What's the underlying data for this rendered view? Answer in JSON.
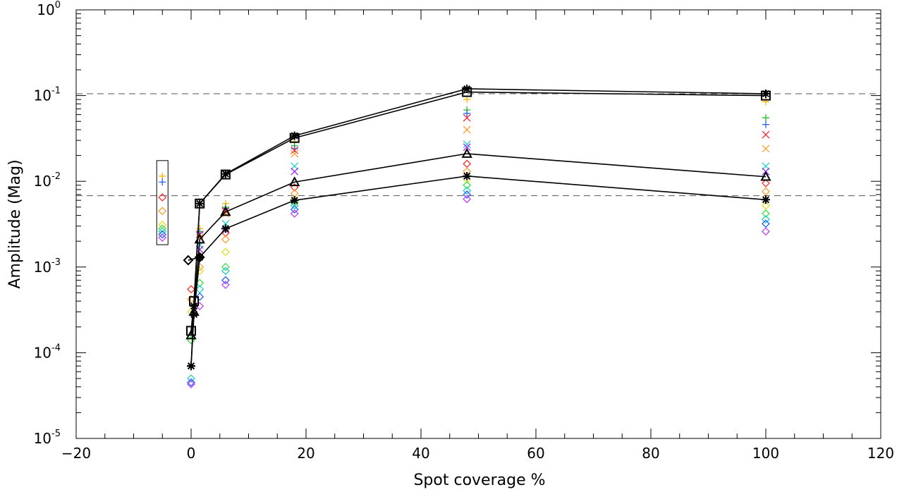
{
  "chart_data": {
    "type": "scatter",
    "title": "",
    "xlabel": "Spot coverage %",
    "ylabel": "Amplitude (Mag)",
    "xlim": [
      -20,
      120
    ],
    "ylim": [
      1e-05,
      1
    ],
    "yscale": "log",
    "x_ticks": [
      -20,
      0,
      20,
      40,
      60,
      80,
      100,
      120
    ],
    "x_tick_labels": [
      "−20",
      "0",
      "20",
      "40",
      "60",
      "80",
      "100",
      "120"
    ],
    "y_ticks": [
      {
        "base": "10",
        "exp": "0",
        "value": 1
      },
      {
        "base": "10",
        "exp": "-1",
        "value": 0.1
      },
      {
        "base": "10",
        "exp": "-2",
        "value": 0.01
      },
      {
        "base": "10",
        "exp": "-3",
        "value": 0.001
      },
      {
        "base": "10",
        "exp": "-4",
        "value": 0.0001
      },
      {
        "base": "10",
        "exp": "-5",
        "value": 1e-05
      }
    ],
    "grid": false,
    "reference_lines": [
      {
        "y": 0.105,
        "style": "dashed"
      },
      {
        "y": 0.0068,
        "style": "dashed"
      }
    ],
    "series": [
      {
        "marker": "star",
        "color": "#000000",
        "points": [
          [
            0,
            7e-05
          ],
          [
            0.5,
            0.00035
          ],
          [
            1.5,
            0.0055
          ],
          [
            6,
            0.0122
          ],
          [
            18,
            0.034
          ],
          [
            48,
            0.12
          ],
          [
            100,
            0.105
          ]
        ]
      },
      {
        "marker": "square",
        "color": "#000000",
        "points": [
          [
            0,
            0.00018
          ],
          [
            0.5,
            0.0004
          ],
          [
            1.5,
            0.0055
          ],
          [
            6,
            0.012
          ],
          [
            18,
            0.032
          ],
          [
            48,
            0.11
          ],
          [
            100,
            0.1
          ]
        ]
      },
      {
        "marker": "triangle",
        "color": "#000000",
        "points": [
          [
            0,
            0.00016
          ],
          [
            0.5,
            0.0003
          ],
          [
            1.5,
            0.0021
          ],
          [
            6,
            0.0044
          ],
          [
            18,
            0.0098
          ],
          [
            48,
            0.021
          ],
          [
            100,
            0.0113
          ]
        ]
      },
      {
        "marker": "asterisk",
        "color": "#000000",
        "points": [
          [
            0,
            7e-05
          ],
          [
            0.5,
            0.00028
          ],
          [
            1.5,
            0.0013
          ],
          [
            6,
            0.0028
          ],
          [
            18,
            0.006
          ],
          [
            48,
            0.0115
          ],
          [
            100,
            0.0061
          ]
        ]
      },
      {
        "marker": "diamond",
        "color": "#000000",
        "points": [
          [
            -0.5,
            0.0012
          ],
          [
            1.5,
            0.0013
          ]
        ]
      }
    ],
    "colored_markers": [
      {
        "color": "#ffb000",
        "marker": "plus",
        "x": [
          48,
          100,
          18,
          6,
          1.5
        ],
        "y": [
          0.09,
          0.085,
          0.029,
          0.0055,
          0.0028
        ]
      },
      {
        "color": "#20c020",
        "marker": "plus",
        "x": [
          48,
          100,
          18,
          6,
          1.5
        ],
        "y": [
          0.068,
          0.055,
          0.026,
          0.005,
          0.0026
        ]
      },
      {
        "color": "#2060ff",
        "marker": "plus",
        "x": [
          48,
          100,
          18,
          6,
          1.5
        ],
        "y": [
          0.062,
          0.046,
          0.024,
          0.0048,
          0.0025
        ]
      },
      {
        "color": "#ff2030",
        "marker": "cross",
        "x": [
          48,
          100,
          18,
          6,
          1.5
        ],
        "y": [
          0.055,
          0.035,
          0.023,
          0.0045,
          0.0024
        ]
      },
      {
        "color": "#ffa030",
        "marker": "cross",
        "x": [
          48,
          100,
          18,
          6,
          1.5
        ],
        "y": [
          0.04,
          0.024,
          0.021,
          0.0042,
          0.0022
        ]
      },
      {
        "color": "#20d0d0",
        "marker": "cross",
        "x": [
          48,
          100,
          18,
          6,
          1.5
        ],
        "y": [
          0.027,
          0.015,
          0.015,
          0.0032,
          0.0018
        ]
      },
      {
        "color": "#a020ff",
        "marker": "cross",
        "x": [
          48,
          100,
          18,
          6,
          1.5
        ],
        "y": [
          0.025,
          0.013,
          0.013,
          0.0027,
          0.0016
        ]
      },
      {
        "color": "#ff3030",
        "marker": "diamond",
        "x": [
          48,
          100,
          18,
          6,
          1.5,
          0
        ],
        "y": [
          0.016,
          0.0095,
          0.0085,
          0.0025,
          0.0013,
          0.00055
        ]
      },
      {
        "color": "#ffa030",
        "marker": "diamond",
        "x": [
          48,
          100,
          18,
          6,
          1.5,
          0
        ],
        "y": [
          0.013,
          0.0076,
          0.0072,
          0.0021,
          0.001,
          0.00042
        ]
      },
      {
        "color": "#e0e020",
        "marker": "diamond",
        "x": [
          48,
          100,
          18,
          6,
          1.5,
          0
        ],
        "y": [
          0.0105,
          0.0052,
          0.006,
          0.0015,
          0.0009,
          0.0003
        ]
      },
      {
        "color": "#40e040",
        "marker": "diamond",
        "x": [
          48,
          100,
          18,
          6,
          1.5,
          0
        ],
        "y": [
          0.009,
          0.0042,
          0.0056,
          0.001,
          0.00065,
          0.00014
        ]
      },
      {
        "color": "#20d0d0",
        "marker": "diamond",
        "x": [
          48,
          100,
          18,
          6,
          1.5,
          0
        ],
        "y": [
          0.0078,
          0.0036,
          0.0052,
          0.0009,
          0.00055,
          5e-05
        ]
      },
      {
        "color": "#2060ff",
        "marker": "diamond",
        "x": [
          48,
          100,
          18,
          6,
          1.5,
          0
        ],
        "y": [
          0.007,
          0.0032,
          0.0047,
          0.0007,
          0.00045,
          4.5e-05
        ]
      },
      {
        "color": "#c040ff",
        "marker": "diamond",
        "x": [
          48,
          100,
          18,
          6,
          1.5,
          0
        ],
        "y": [
          0.0062,
          0.0026,
          0.0042,
          0.00062,
          0.00035,
          4.3e-05
        ]
      }
    ],
    "inset_key": {
      "x": -5,
      "markers": [
        {
          "color": "#ffb000",
          "marker": "plus",
          "y": 0.0115
        },
        {
          "color": "#2060ff",
          "marker": "plus",
          "y": 0.0098
        },
        {
          "color": "#ff3030",
          "marker": "diamond",
          "y": 0.0065
        },
        {
          "color": "#ffa030",
          "marker": "diamond",
          "y": 0.0045
        },
        {
          "color": "#e0e020",
          "marker": "diamond",
          "y": 0.0031
        },
        {
          "color": "#40e040",
          "marker": "diamond",
          "y": 0.0028
        },
        {
          "color": "#20d0d0",
          "marker": "diamond",
          "y": 0.0026
        },
        {
          "color": "#2060ff",
          "marker": "diamond",
          "y": 0.0024
        },
        {
          "color": "#c040ff",
          "marker": "diamond",
          "y": 0.0022
        }
      ]
    }
  }
}
